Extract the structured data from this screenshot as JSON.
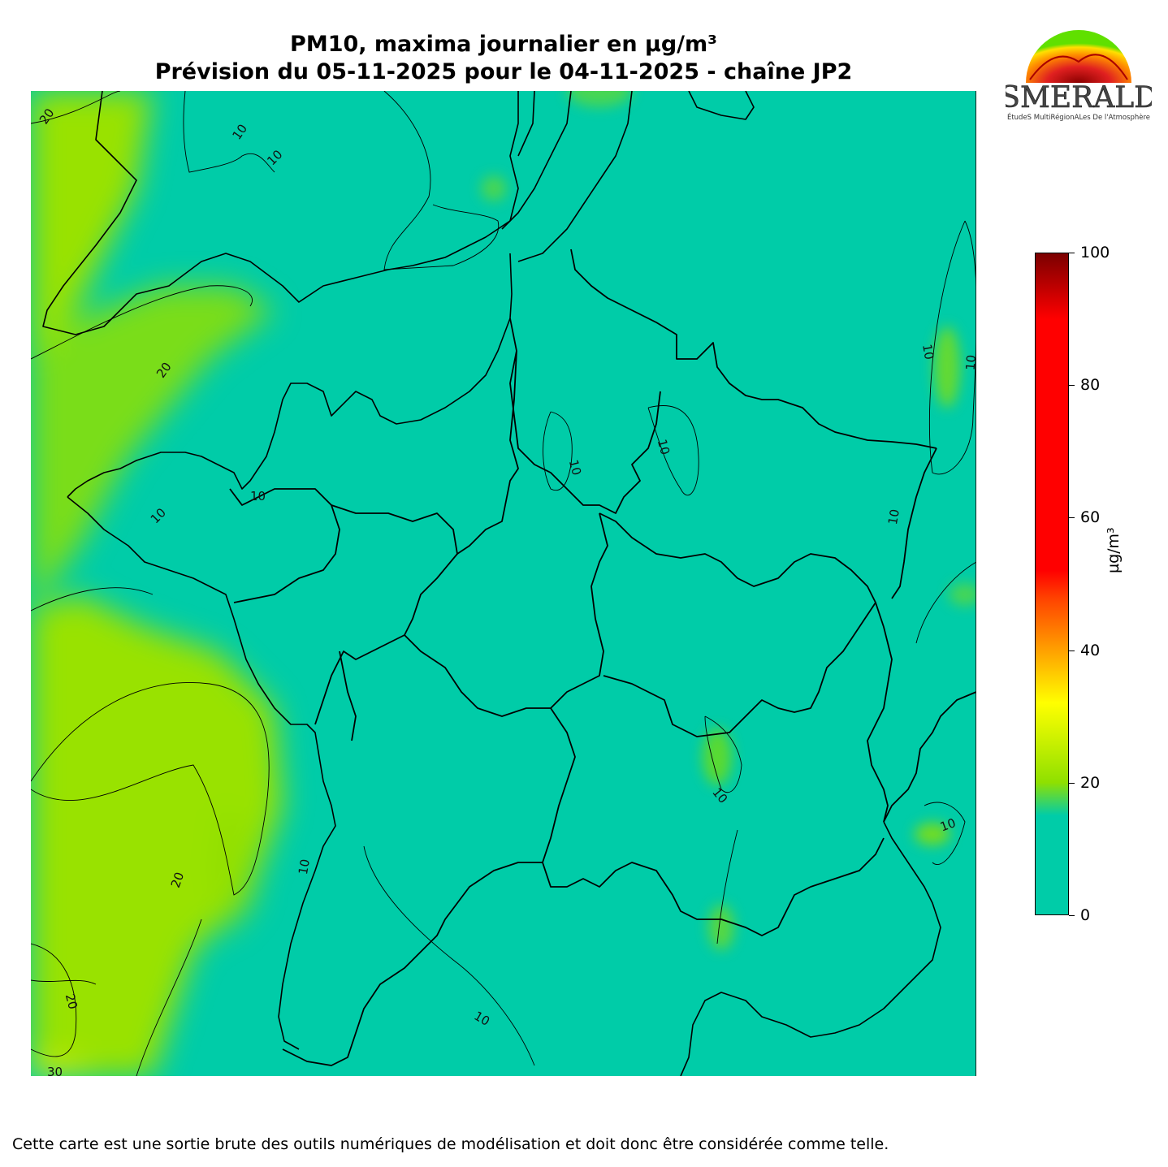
{
  "title": {
    "line1": "PM10, maxima journalier en µg/m³",
    "line2": "Prévision du 05-11-2025 pour le 04-11-2025 - chaîne JP2"
  },
  "logo": {
    "name": "ESMERALDA",
    "subtitle": "ÉtudeS MultiRégionALes De l'Atmosphère"
  },
  "colorbar": {
    "unit": "µg/m³",
    "range": [
      0,
      100
    ],
    "ticks": [
      "0",
      "20",
      "40",
      "60",
      "80",
      "100"
    ],
    "stops": [
      {
        "value": 0,
        "color": "#00cca8"
      },
      {
        "value": 15,
        "color": "#00cca8"
      },
      {
        "value": 20,
        "color": "#8fe000"
      },
      {
        "value": 26,
        "color": "#c8f000"
      },
      {
        "value": 32,
        "color": "#ffff00"
      },
      {
        "value": 40,
        "color": "#ffa000"
      },
      {
        "value": 48,
        "color": "#ff4000"
      },
      {
        "value": 52,
        "color": "#ff0000"
      },
      {
        "value": 90,
        "color": "#ff0000"
      },
      {
        "value": 100,
        "color": "#7a0000"
      }
    ]
  },
  "map": {
    "background_color": "#00cca8",
    "higher_zone_color": "#99e200",
    "contour_labels": [
      "10",
      "20",
      "30"
    ]
  },
  "footer": "Cette carte est une sortie brute des outils numériques de modélisation et doit donc être considérée comme telle."
}
